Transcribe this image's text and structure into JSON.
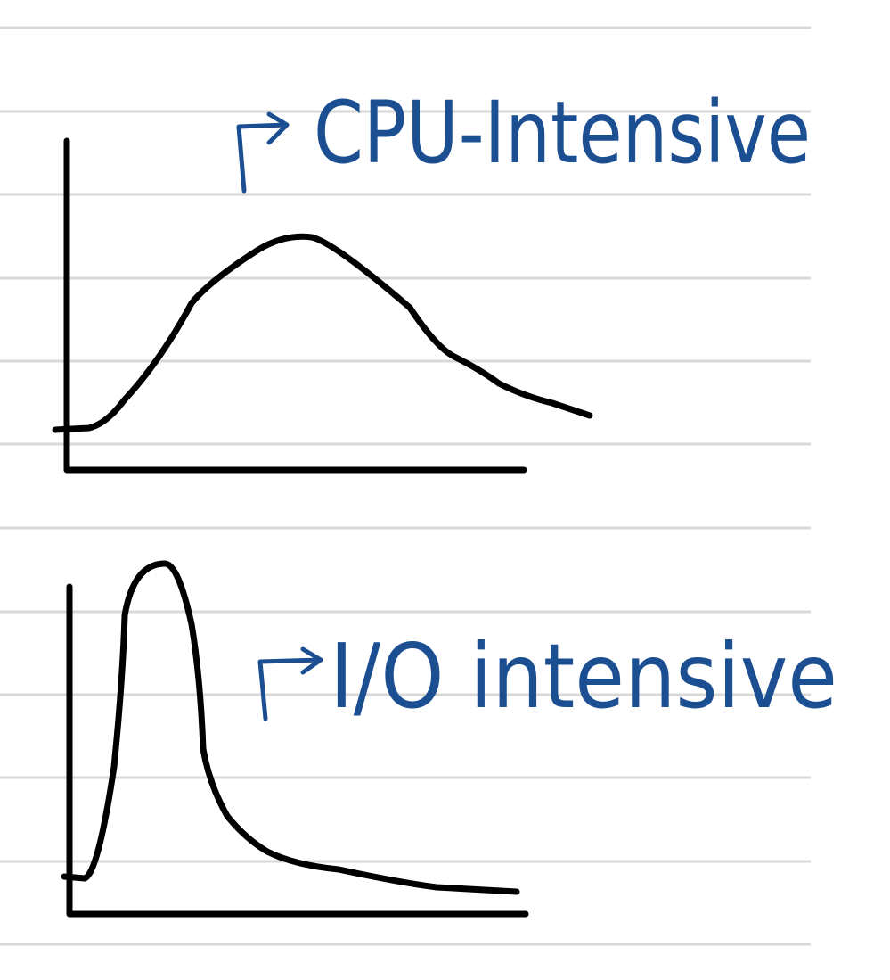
{
  "sketches": [
    {
      "label": "CPU-Intensive"
    },
    {
      "label": "I/O intensive"
    }
  ]
}
